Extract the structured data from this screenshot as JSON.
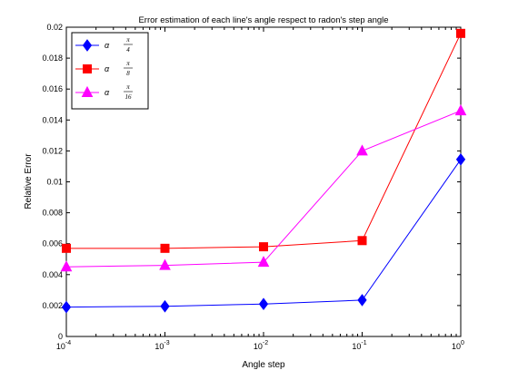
{
  "chart_data": {
    "type": "line",
    "title": "Error estimation of each line's angle respect to radon's step angle",
    "xlabel": "Angle step",
    "ylabel": "Relative Error",
    "xscale": "log",
    "xlim": [
      0.0001,
      1
    ],
    "ylim": [
      0,
      0.02
    ],
    "x": [
      0.0001,
      0.001,
      0.01,
      0.1,
      1
    ],
    "x_ticks": [
      0.0001,
      0.001,
      0.01,
      0.1,
      1
    ],
    "x_tick_labels": [
      {
        "base": "10",
        "exp": "-4"
      },
      {
        "base": "10",
        "exp": "-3"
      },
      {
        "base": "10",
        "exp": "-2"
      },
      {
        "base": "10",
        "exp": "-1"
      },
      {
        "base": "10",
        "exp": "0"
      }
    ],
    "y_ticks": [
      0,
      0.002,
      0.004,
      0.006,
      0.008,
      0.01,
      0.012,
      0.014,
      0.016,
      0.018,
      0.02
    ],
    "y_tick_labels": [
      "0",
      "0.002",
      "0.004",
      "0.006",
      "0.008",
      "0.01",
      "0.012",
      "0.014",
      "0.016",
      "0.018",
      "0.02"
    ],
    "grid": false,
    "legend_position": "top-left",
    "series": [
      {
        "legend_symbol": "α",
        "legend_numerator": "π",
        "legend_denominator": "4",
        "color": "#0000ff",
        "marker": "diamond",
        "values": [
          0.0019,
          0.00195,
          0.0021,
          0.00235,
          0.01145
        ]
      },
      {
        "legend_symbol": "α",
        "legend_numerator": "π",
        "legend_denominator": "8",
        "color": "#ff0000",
        "marker": "square",
        "values": [
          0.0057,
          0.0057,
          0.0058,
          0.0062,
          0.0196
        ]
      },
      {
        "legend_symbol": "α",
        "legend_numerator": "π",
        "legend_denominator": "16",
        "color": "#ff00ff",
        "marker": "triangle",
        "values": [
          0.0045,
          0.0046,
          0.0048,
          0.012,
          0.0146
        ]
      }
    ]
  }
}
